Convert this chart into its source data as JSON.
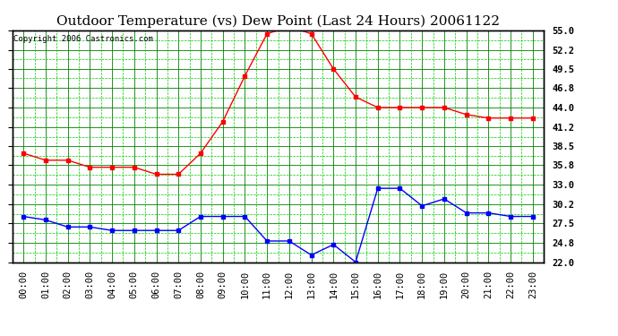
{
  "title": "Outdoor Temperature (vs) Dew Point (Last 24 Hours) 20061122",
  "copyright": "Copyright 2006 Castronics.com",
  "x_labels": [
    "00:00",
    "01:00",
    "02:00",
    "03:00",
    "04:00",
    "05:00",
    "06:00",
    "07:00",
    "08:00",
    "09:00",
    "10:00",
    "11:00",
    "12:00",
    "13:00",
    "14:00",
    "15:00",
    "16:00",
    "17:00",
    "18:00",
    "19:00",
    "20:00",
    "21:00",
    "22:00",
    "23:00"
  ],
  "temp_data": [
    37.5,
    36.5,
    36.5,
    35.5,
    35.5,
    35.5,
    34.5,
    34.5,
    37.5,
    42.0,
    48.5,
    54.5,
    55.5,
    54.5,
    49.5,
    45.5,
    44.0,
    44.0,
    44.0,
    44.0,
    43.0,
    42.5,
    42.5,
    42.5
  ],
  "dew_data": [
    28.5,
    28.0,
    27.0,
    27.0,
    26.5,
    26.5,
    26.5,
    26.5,
    28.5,
    28.5,
    28.5,
    25.0,
    25.0,
    23.0,
    24.5,
    22.0,
    32.5,
    32.5,
    30.0,
    31.0,
    29.0,
    29.0,
    28.5,
    28.5
  ],
  "temp_color": "#ff0000",
  "dew_color": "#0000ff",
  "bg_color": "#ffffff",
  "plot_bg_color": "#ffffff",
  "grid_color_major": "#008000",
  "grid_color_minor": "#00cc00",
  "ylim": [
    22.0,
    55.0
  ],
  "yticks": [
    22.0,
    24.8,
    27.5,
    30.2,
    33.0,
    35.8,
    38.5,
    41.2,
    44.0,
    46.8,
    49.5,
    52.2,
    55.0
  ],
  "title_fontsize": 11,
  "copyright_fontsize": 6.5,
  "tick_fontsize": 7.5,
  "marker": "s",
  "marker_size": 2.5,
  "line_width": 1.0
}
